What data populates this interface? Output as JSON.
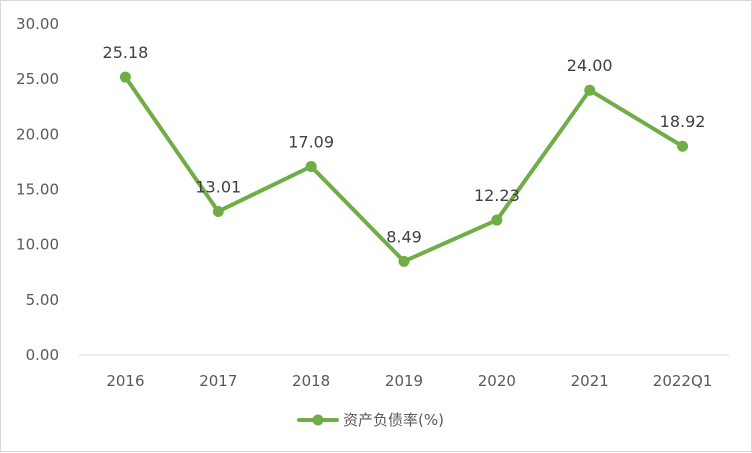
{
  "chart_data": {
    "type": "line",
    "title": "",
    "xlabel": "",
    "ylabel": "",
    "categories": [
      "2016",
      "2017",
      "2018",
      "2019",
      "2020",
      "2021",
      "2022Q1"
    ],
    "series": [
      {
        "name": "资产负债率(%)",
        "values": [
          25.18,
          13.01,
          17.09,
          8.49,
          12.23,
          24.0,
          18.92
        ],
        "labels": [
          "25.18",
          "13.01",
          "17.09",
          "8.49",
          "12.23",
          "24.00",
          "18.92"
        ]
      }
    ],
    "ylim": [
      0,
      30
    ],
    "yticks": [
      "0.00",
      "5.00",
      "10.00",
      "15.00",
      "20.00",
      "25.00",
      "30.00"
    ],
    "grid": false,
    "legend_position": "bottom",
    "colors": {
      "series": "#70ad47",
      "axis": "#d9d9d9",
      "text": "#595959"
    }
  }
}
